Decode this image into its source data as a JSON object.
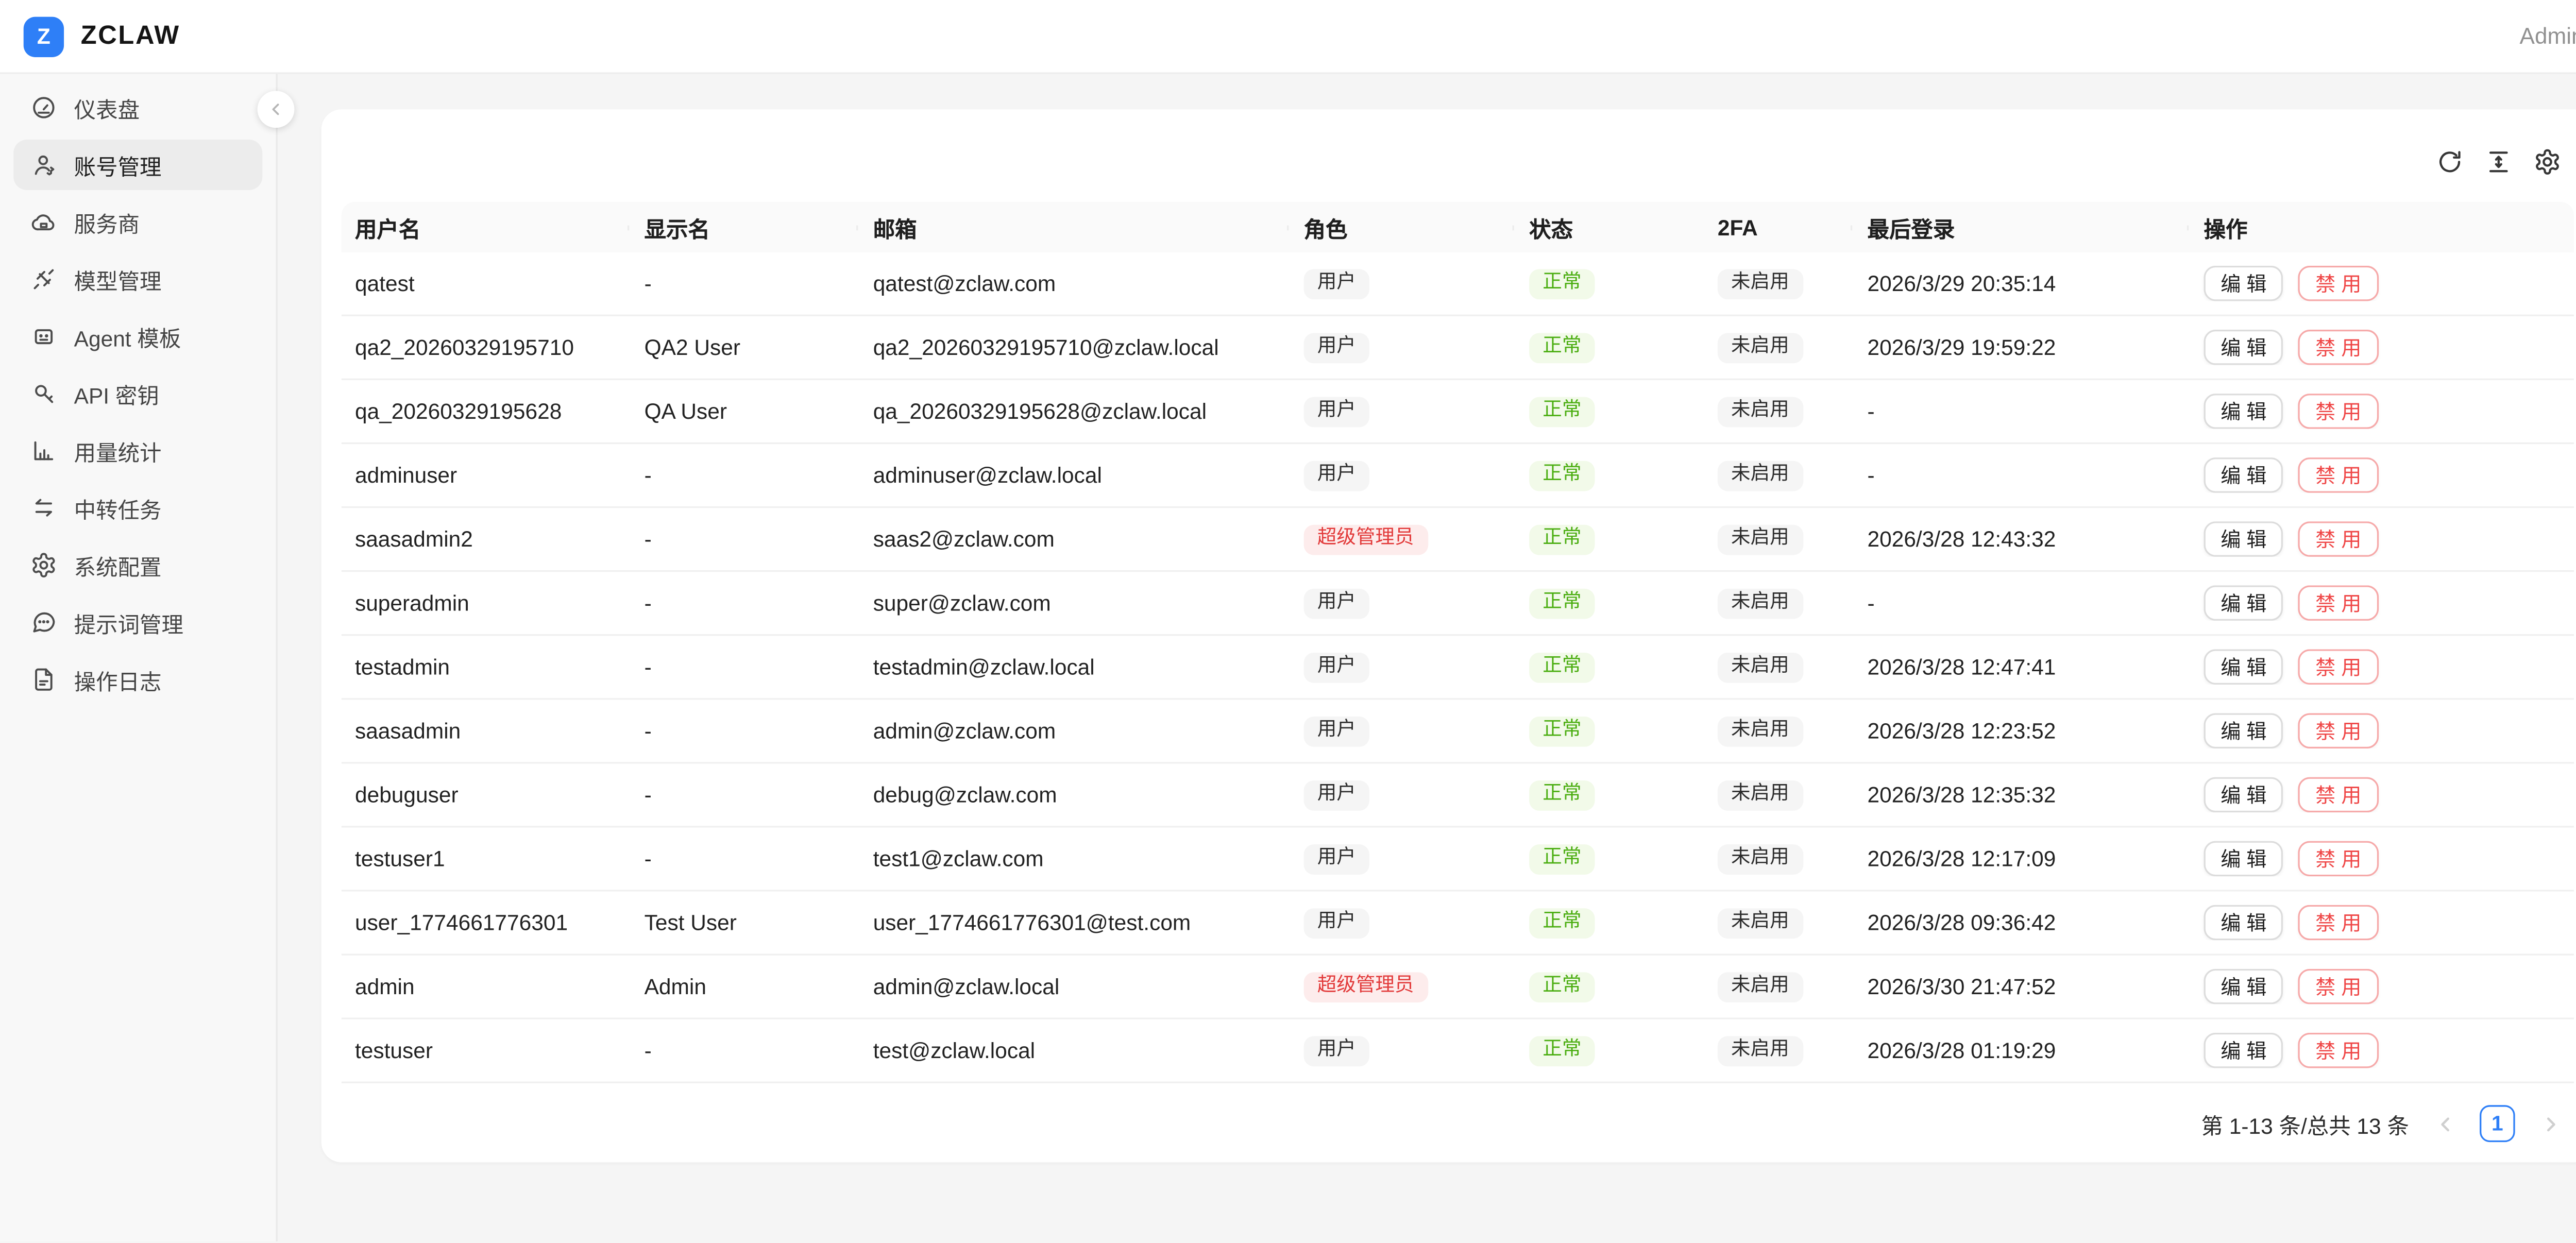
{
  "topbar": {
    "logo_letter": "Z",
    "brand": "ZCLAW",
    "user": "Admin"
  },
  "sidebar": {
    "items": [
      {
        "key": "dashboard",
        "label": "仪表盘",
        "icon": "gauge-icon",
        "active": false
      },
      {
        "key": "accounts",
        "label": "账号管理",
        "icon": "user-icon",
        "active": true
      },
      {
        "key": "providers",
        "label": "服务商",
        "icon": "cloud-icon",
        "active": false
      },
      {
        "key": "models",
        "label": "模型管理",
        "icon": "plug-icon",
        "active": false
      },
      {
        "key": "agents",
        "label": "Agent 模板",
        "icon": "robot-icon",
        "active": false
      },
      {
        "key": "apikeys",
        "label": "API 密钥",
        "icon": "key-icon",
        "active": false
      },
      {
        "key": "usage",
        "label": "用量统计",
        "icon": "chart-icon",
        "active": false
      },
      {
        "key": "relay",
        "label": "中转任务",
        "icon": "swap-icon",
        "active": false
      },
      {
        "key": "system",
        "label": "系统配置",
        "icon": "gear-icon",
        "active": false
      },
      {
        "key": "prompts",
        "label": "提示词管理",
        "icon": "chat-icon",
        "active": false
      },
      {
        "key": "logs",
        "label": "操作日志",
        "icon": "doc-icon",
        "active": false
      }
    ]
  },
  "toolbar": {
    "icons": [
      "refresh-icon",
      "row-height-icon",
      "settings-icon"
    ]
  },
  "table": {
    "columns": [
      "用户名",
      "显示名",
      "邮箱",
      "角色",
      "状态",
      "2FA",
      "最后登录",
      "操作"
    ],
    "edit_label": "编 辑",
    "disable_label": "禁 用",
    "rows": [
      {
        "username": "qatest",
        "display_name": "-",
        "email": "qatest@zclaw.com",
        "role": "用户",
        "role_variant": "user",
        "status": "正常",
        "twofa": "未启用",
        "last_login": "2026/3/29 20:35:14"
      },
      {
        "username": "qa2_20260329195710",
        "display_name": "QA2 User",
        "email": "qa2_20260329195710@zclaw.local",
        "role": "用户",
        "role_variant": "user",
        "status": "正常",
        "twofa": "未启用",
        "last_login": "2026/3/29 19:59:22"
      },
      {
        "username": "qa_20260329195628",
        "display_name": "QA User",
        "email": "qa_20260329195628@zclaw.local",
        "role": "用户",
        "role_variant": "user",
        "status": "正常",
        "twofa": "未启用",
        "last_login": "-"
      },
      {
        "username": "adminuser",
        "display_name": "-",
        "email": "adminuser@zclaw.local",
        "role": "用户",
        "role_variant": "user",
        "status": "正常",
        "twofa": "未启用",
        "last_login": "-"
      },
      {
        "username": "saasadmin2",
        "display_name": "-",
        "email": "saas2@zclaw.com",
        "role": "超级管理员",
        "role_variant": "super",
        "status": "正常",
        "twofa": "未启用",
        "last_login": "2026/3/28 12:43:32"
      },
      {
        "username": "superadmin",
        "display_name": "-",
        "email": "super@zclaw.com",
        "role": "用户",
        "role_variant": "user",
        "status": "正常",
        "twofa": "未启用",
        "last_login": "-"
      },
      {
        "username": "testadmin",
        "display_name": "-",
        "email": "testadmin@zclaw.local",
        "role": "用户",
        "role_variant": "user",
        "status": "正常",
        "twofa": "未启用",
        "last_login": "2026/3/28 12:47:41"
      },
      {
        "username": "saasadmin",
        "display_name": "-",
        "email": "admin@zclaw.com",
        "role": "用户",
        "role_variant": "user",
        "status": "正常",
        "twofa": "未启用",
        "last_login": "2026/3/28 12:23:52"
      },
      {
        "username": "debuguser",
        "display_name": "-",
        "email": "debug@zclaw.com",
        "role": "用户",
        "role_variant": "user",
        "status": "正常",
        "twofa": "未启用",
        "last_login": "2026/3/28 12:35:32"
      },
      {
        "username": "testuser1",
        "display_name": "-",
        "email": "test1@zclaw.com",
        "role": "用户",
        "role_variant": "user",
        "status": "正常",
        "twofa": "未启用",
        "last_login": "2026/3/28 12:17:09"
      },
      {
        "username": "user_1774661776301",
        "display_name": "Test User",
        "email": "user_1774661776301@test.com",
        "role": "用户",
        "role_variant": "user",
        "status": "正常",
        "twofa": "未启用",
        "last_login": "2026/3/28 09:36:42"
      },
      {
        "username": "admin",
        "display_name": "Admin",
        "email": "admin@zclaw.local",
        "role": "超级管理员",
        "role_variant": "super",
        "status": "正常",
        "twofa": "未启用",
        "last_login": "2026/3/30 21:47:52"
      },
      {
        "username": "testuser",
        "display_name": "-",
        "email": "test@zclaw.local",
        "role": "用户",
        "role_variant": "user",
        "status": "正常",
        "twofa": "未启用",
        "last_login": "2026/3/28 01:19:29"
      }
    ]
  },
  "pagination": {
    "summary": "第 1-13 条/总共 13 条",
    "current_page": "1"
  },
  "colors": {
    "accent_blue": "#2e7ff7",
    "tag_green_text": "#4aad10",
    "tag_red_text": "#e23a3a",
    "danger": "#ef4646"
  }
}
